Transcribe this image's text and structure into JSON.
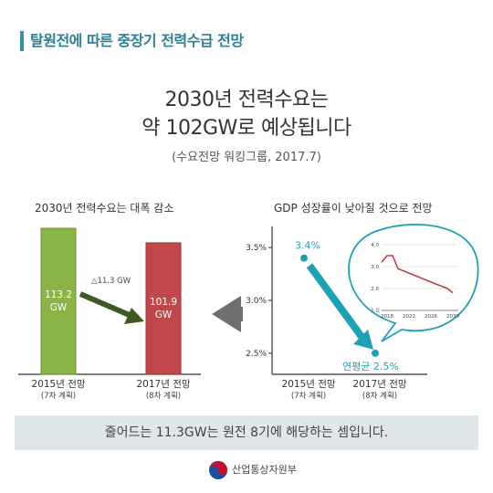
{
  "header": {
    "title": "탈원전에 따른 중장기 전력수급 전망"
  },
  "headline": {
    "line1": "2030년 전력수요는",
    "line2": "약 102GW로 예상됩니다",
    "source": "(수요전망 워킹그룹, 2017.7)"
  },
  "colors": {
    "accent": "#3d8fa0",
    "green_bar": "#8ab446",
    "red_bar": "#c0474b",
    "teal": "#1fa1b5",
    "trend_line": "#b5464a",
    "dark_arrow": "#3f5a24"
  },
  "chart_data": [
    {
      "type": "bar",
      "title": "2030년 전력수요는 대폭 감소",
      "categories": [
        "2015년 전망",
        "2017년 전망"
      ],
      "category_sublabels": [
        "(7차 계획)",
        "(8차 계획)"
      ],
      "values": [
        113.2,
        101.9
      ],
      "data_labels": [
        "113.2\nGW",
        "101.9\nGW"
      ],
      "annotation": "△11.3 GW",
      "ylim": [
        0,
        120
      ]
    },
    {
      "type": "scatter",
      "title": "GDP 성장률이 낮아질 것으로 전망",
      "categories": [
        "2015년 전망",
        "2017년 전망"
      ],
      "category_sublabels": [
        "(7차 계획)",
        "(8차 계획)"
      ],
      "y_ticks": [
        "3.5%",
        "3.0%",
        "2.5%"
      ],
      "ylim": [
        2.3,
        3.7
      ],
      "values": [
        3.4,
        2.5
      ],
      "data_labels": [
        "3.4%",
        "연평균 2.5%"
      ]
    },
    {
      "type": "line",
      "x_ticks": [
        "2018",
        "2022",
        "2026",
        "2030"
      ],
      "y_ticks": [
        "4.0",
        "3.0",
        "2.0",
        "1.0"
      ],
      "ylim": [
        1.0,
        4.0
      ],
      "xlim": [
        2017,
        2031
      ],
      "x": [
        2017,
        2018,
        2019,
        2020,
        2021,
        2022,
        2023,
        2024,
        2025,
        2026,
        2027,
        2028,
        2029,
        2030
      ],
      "values": [
        3.2,
        3.5,
        3.5,
        2.9,
        2.8,
        2.7,
        2.6,
        2.5,
        2.4,
        2.3,
        2.2,
        2.1,
        2.0,
        1.8
      ]
    }
  ],
  "footer": {
    "summary": "줄어드는 11.3GW는 원전 8기에 해당하는 셈입니다."
  },
  "org": {
    "name": "산업통상자원부"
  }
}
